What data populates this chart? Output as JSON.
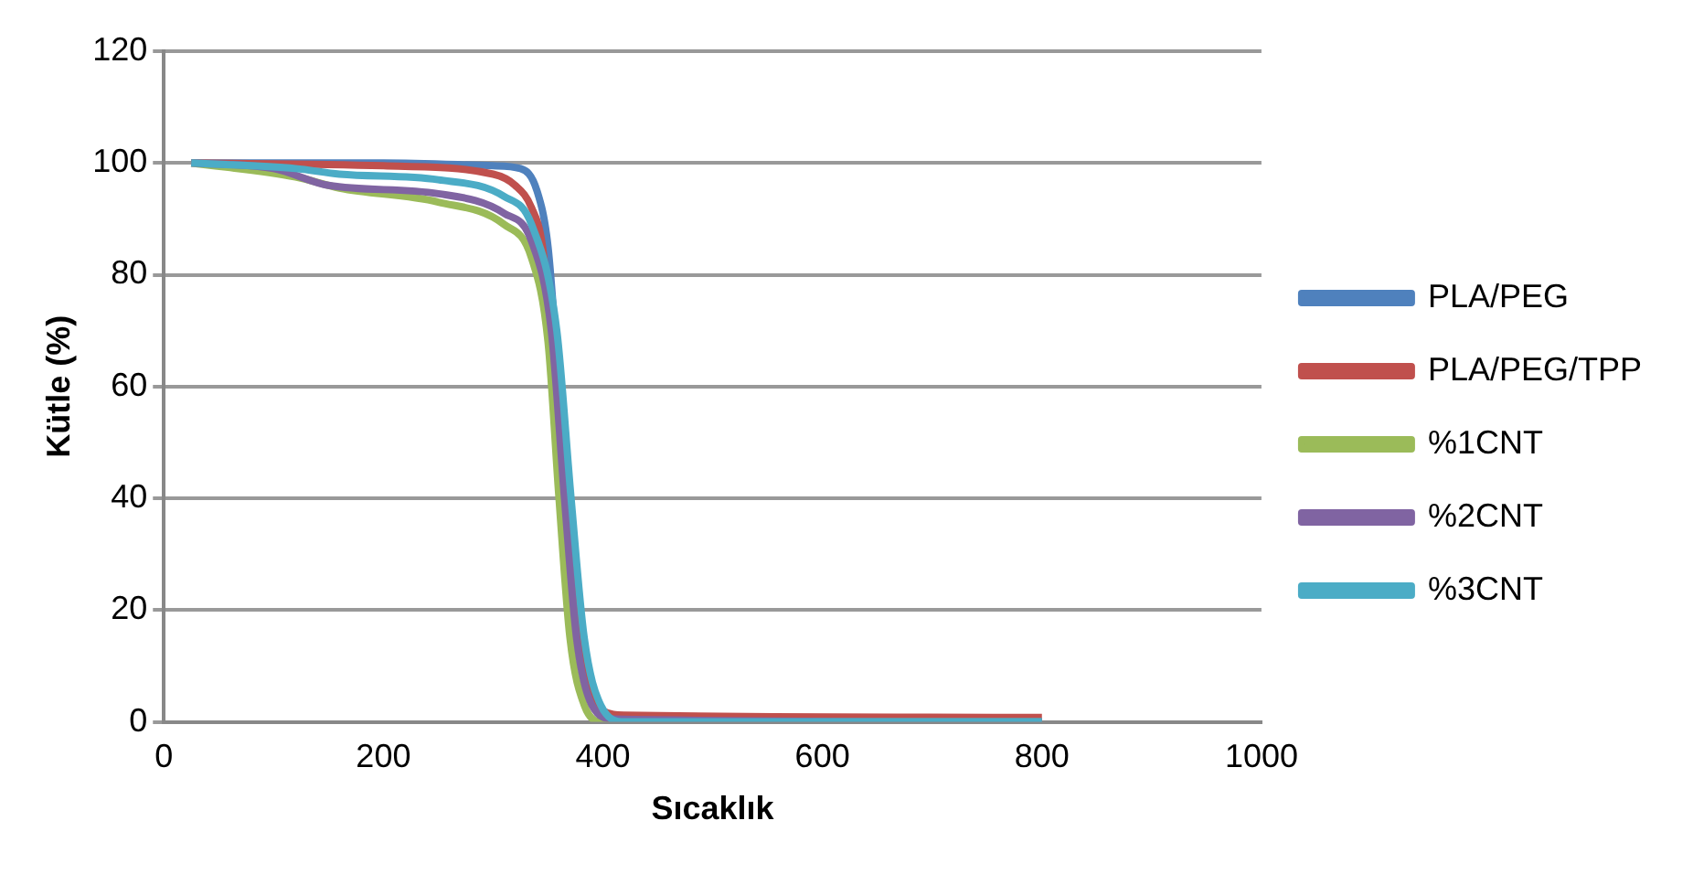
{
  "chart_data": {
    "type": "line",
    "xlabel": "Sıcaklık",
    "ylabel": "Kütle (%)",
    "xlim": [
      0,
      1000
    ],
    "xticks": [
      0,
      200,
      400,
      600,
      800,
      1000
    ],
    "ylim": [
      0,
      120
    ],
    "yticks": [
      0,
      20,
      40,
      60,
      80,
      100,
      120
    ],
    "grid": "y",
    "legend": "right",
    "marker": "none",
    "series": [
      {
        "name": "PLA/PEG",
        "color": "#4f81bd",
        "x": [
          25,
          200,
          300,
          325,
          340,
          350,
          360,
          370,
          380,
          390,
          400
        ],
        "values": [
          100,
          100,
          99.5,
          99,
          95,
          85,
          60,
          35,
          15,
          5,
          1.5
        ]
      },
      {
        "name": "PLA/PEG/TPP",
        "color": "#c0504d",
        "x": [
          25,
          200,
          300,
          320,
          335,
          345,
          357,
          368,
          378,
          390,
          400,
          420,
          800
        ],
        "values": [
          100,
          99.5,
          98,
          96,
          92,
          85,
          60,
          35,
          15,
          5,
          2,
          1.2,
          0.8
        ]
      },
      {
        "name": "%1CNT",
        "color": "#9bbb59",
        "x": [
          25,
          120,
          160,
          250,
          310,
          335,
          350,
          360,
          370,
          383,
          400,
          800
        ],
        "values": [
          100,
          97.5,
          95.5,
          93,
          89,
          83,
          68,
          40,
          15,
          3,
          0,
          0
        ]
      },
      {
        "name": "%2CNT",
        "color": "#8064a2",
        "x": [
          25,
          100,
          150,
          250,
          310,
          335,
          353,
          365,
          376,
          390,
          410,
          800
        ],
        "values": [
          100,
          99,
          96,
          94.5,
          91,
          86,
          70,
          40,
          15,
          3,
          0.5,
          0
        ]
      },
      {
        "name": "%3CNT",
        "color": "#4bacc6",
        "x": [
          25,
          120,
          160,
          250,
          310,
          335,
          358,
          371,
          383,
          398,
          420,
          800
        ],
        "values": [
          100,
          99,
          98,
          97,
          94,
          89,
          70,
          40,
          15,
          3,
          0,
          0
        ]
      }
    ]
  }
}
